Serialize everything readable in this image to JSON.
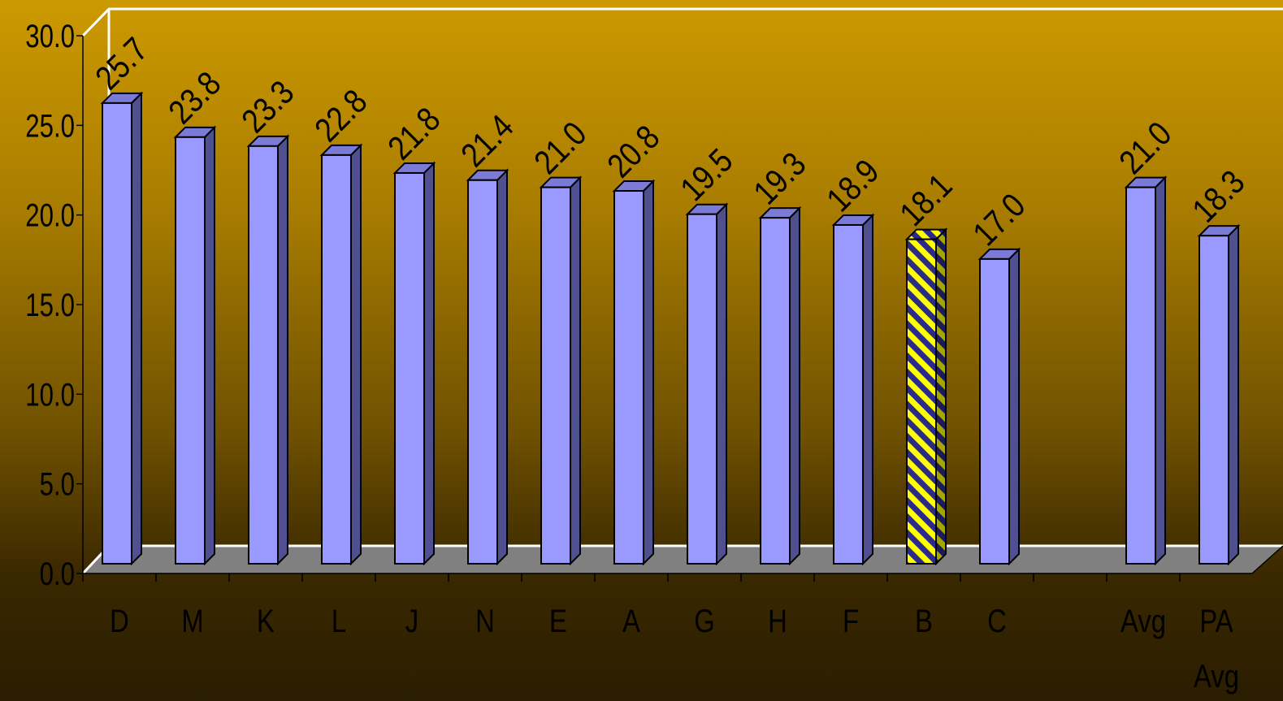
{
  "chart_data": {
    "type": "bar",
    "style": "3d-column",
    "categories": [
      "D",
      "M",
      "K",
      "L",
      "J",
      "N",
      "E",
      "A",
      "G",
      "H",
      "F",
      "B",
      "C",
      "",
      "Avg",
      "PA Avg"
    ],
    "values": [
      25.7,
      23.8,
      23.3,
      22.8,
      21.8,
      21.4,
      21.0,
      20.8,
      19.5,
      19.3,
      18.9,
      18.1,
      17.0,
      null,
      21.0,
      18.3
    ],
    "data_labels": [
      "25.7",
      "23.8",
      "23.3",
      "22.8",
      "21.8",
      "21.4",
      "21.0",
      "20.8",
      "19.5",
      "19.3",
      "18.9",
      "18.1",
      "17.0",
      "",
      "21.0",
      "18.3"
    ],
    "highlighted_category": "B",
    "ylim": [
      0,
      30
    ],
    "yticks": [
      "0.0",
      "5.0",
      "10.0",
      "15.0",
      "20.0",
      "25.0",
      "30.0"
    ],
    "title": "",
    "xlabel": "",
    "ylabel": "",
    "grid": false,
    "legend": "none",
    "colors": {
      "bar_front": "#9999ff",
      "bar_side": "#505090",
      "bar_top": "#7b7bd6",
      "highlight_stripe_a": "#ffff00",
      "highlight_stripe_b": "#2a2a8a",
      "floor": "#808080",
      "wall_edge": "#ffffff"
    }
  }
}
